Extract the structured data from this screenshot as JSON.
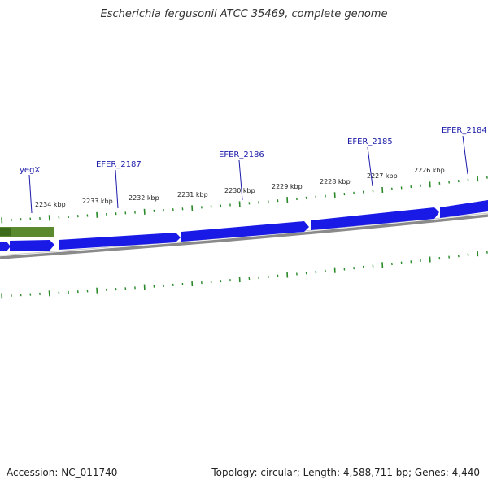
{
  "title": "Escherichia fergusonii ATCC 35469, complete genome",
  "accession": "Accession: NC_011740",
  "summary": "Topology: circular; Length: 4,588,711 bp; Genes: 4,440",
  "colors": {
    "forward_gene": "#1a1ae6",
    "selected_gene": "#5b8a2e",
    "backbone": "#808080",
    "tick": "#2a8a2a",
    "gene_label": "#1a1aa8"
  },
  "ruler_labels": [
    "2234 kbp",
    "2233 kbp",
    "2232 kbp",
    "2231 kbp",
    "2230 kbp",
    "2229 kbp",
    "2228 kbp",
    "2227 kbp",
    "2226 kbp"
  ],
  "gene_labels": [
    "yegX",
    "EFER_2187",
    "EFER_2186",
    "EFER_2185",
    "EFER_2184"
  ]
}
